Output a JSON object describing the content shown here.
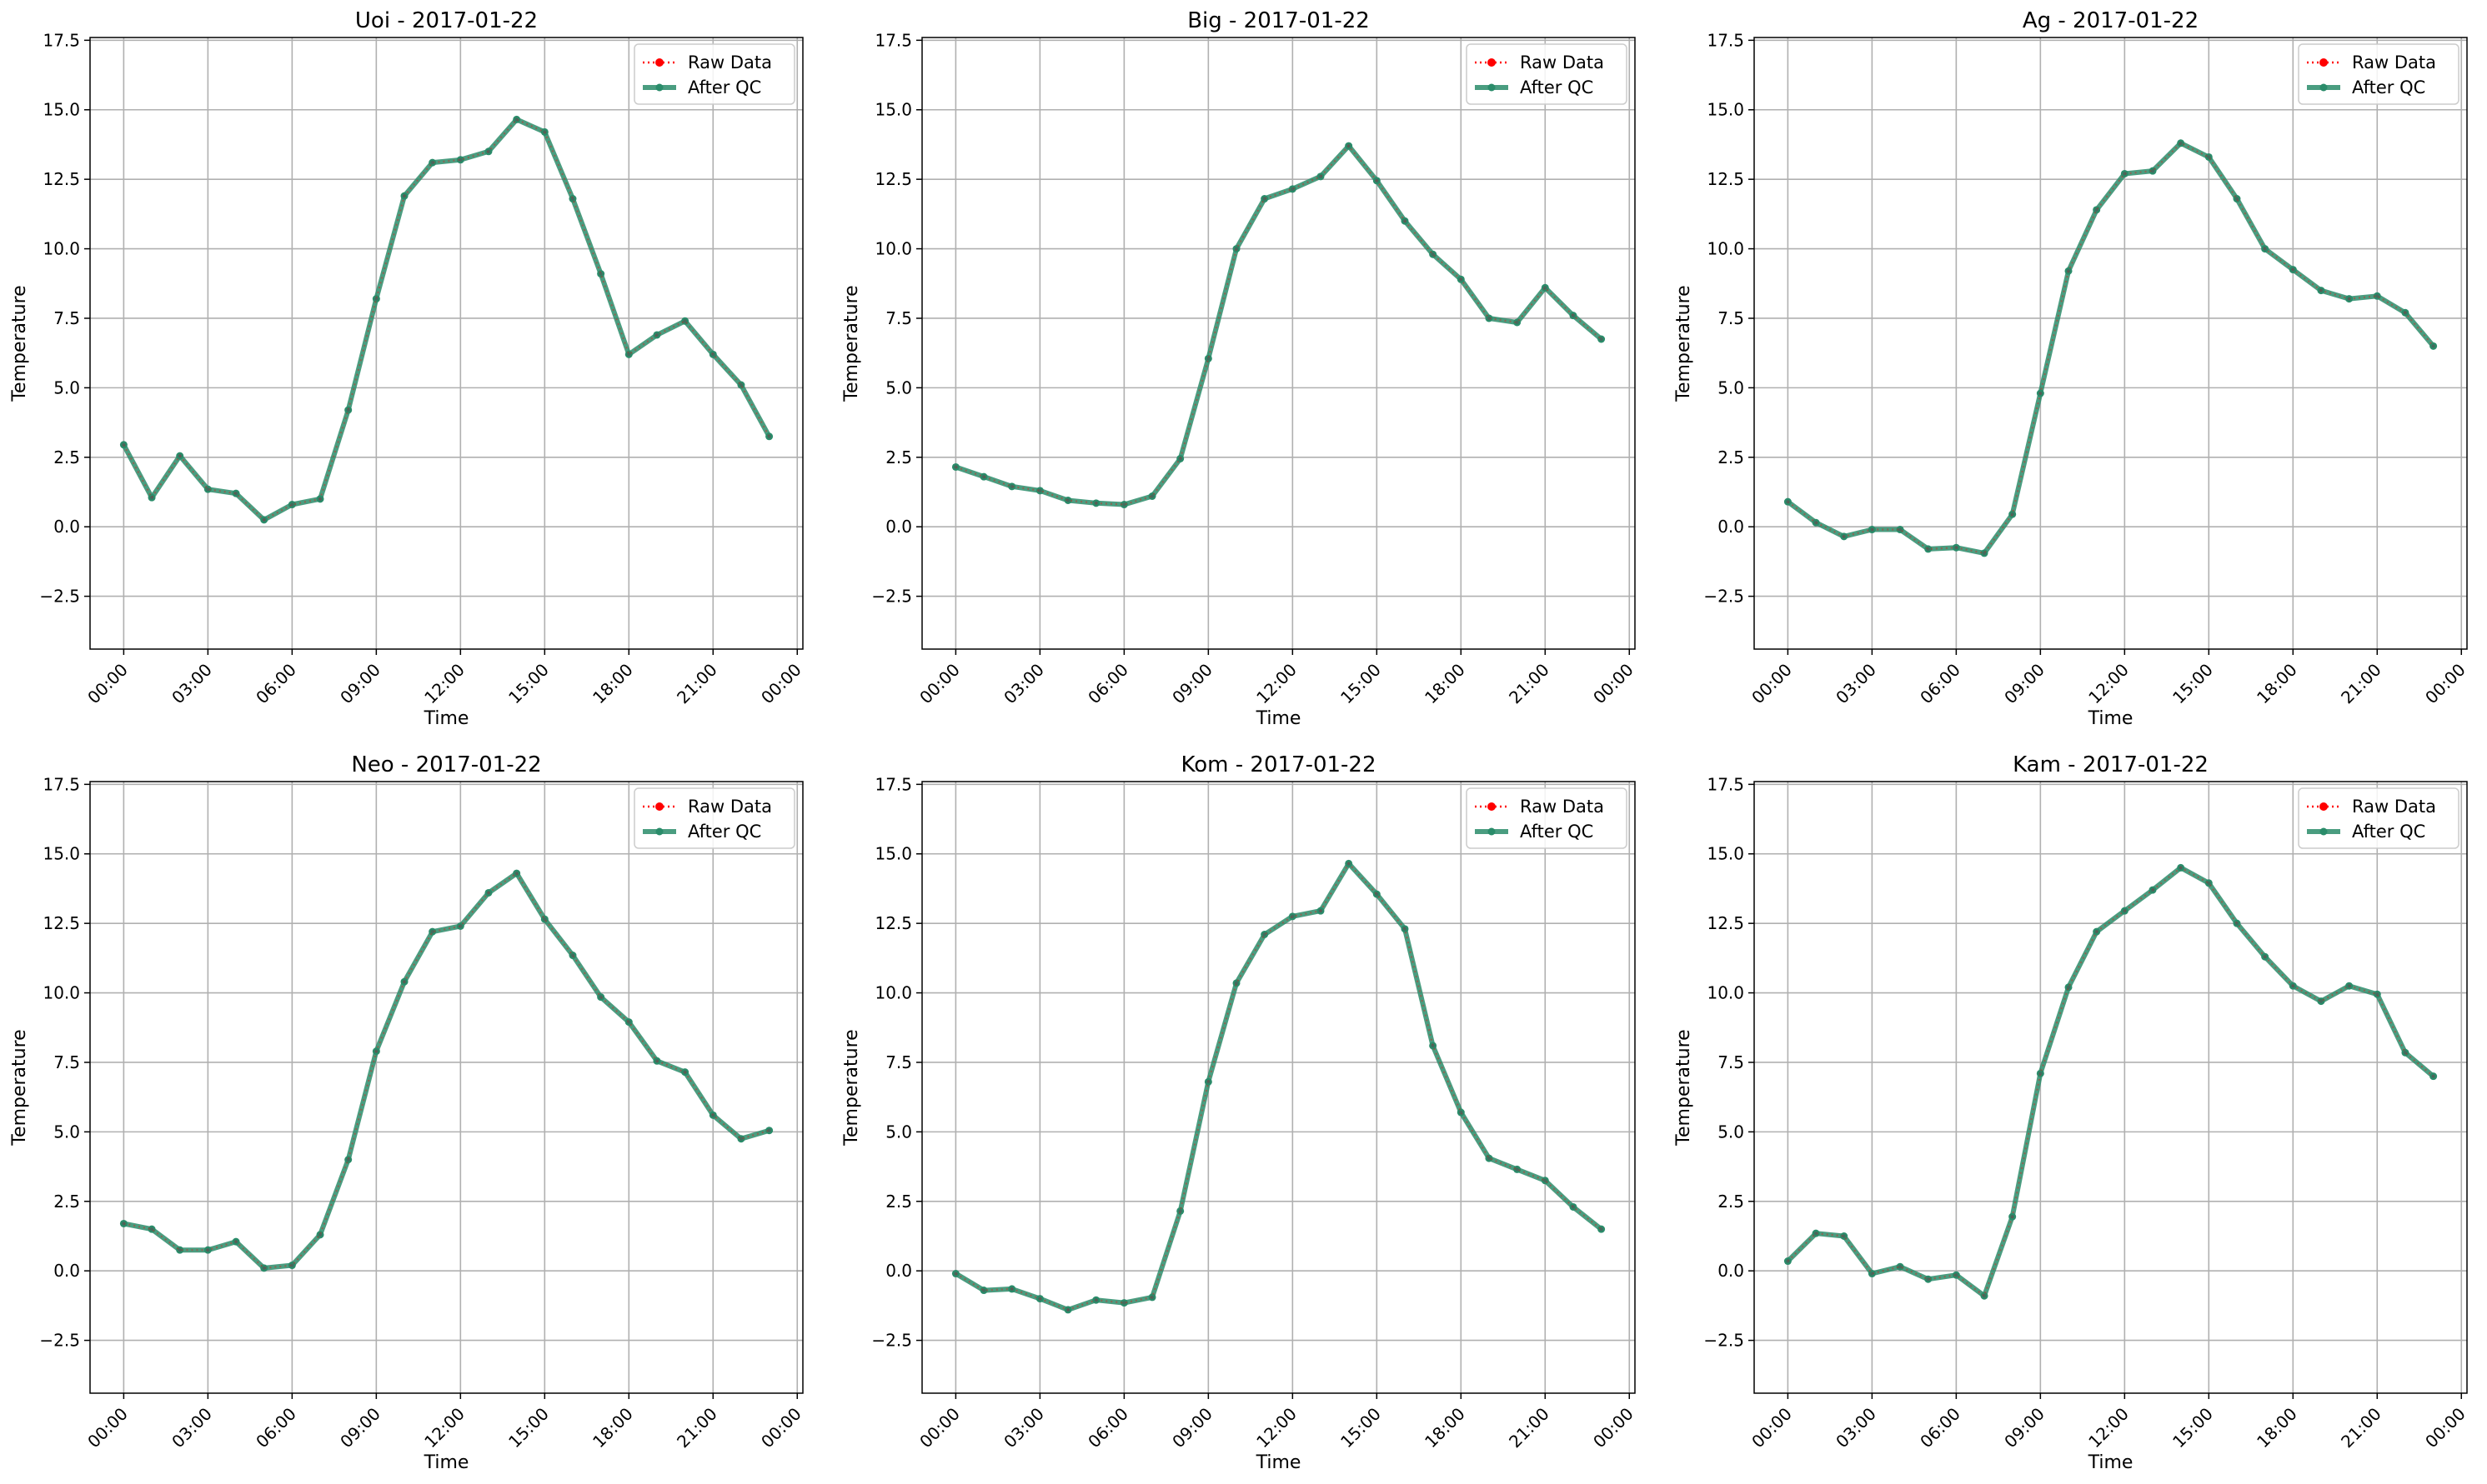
{
  "chart_data": [
    {
      "type": "line",
      "title": "Uoi - 2017-01-22",
      "xlabel": "Time",
      "ylabel": "Temperature",
      "x_ticks": [
        "00:00",
        "03:00",
        "06:00",
        "09:00",
        "12:00",
        "15:00",
        "18:00",
        "21:00",
        "00:00"
      ],
      "y_ticks": [
        "−2.5",
        "0.0",
        "2.5",
        "5.0",
        "7.5",
        "10.0",
        "12.5",
        "15.0",
        "17.5"
      ],
      "xlim": [
        "2017-01-21T22:48",
        "2017-01-23T00:12"
      ],
      "ylim": [
        -4.4,
        17.6
      ],
      "grid": true,
      "legend": "top-right",
      "x": [
        "00:00",
        "01:00",
        "02:00",
        "03:00",
        "04:00",
        "05:00",
        "06:00",
        "07:00",
        "08:00",
        "09:00",
        "10:00",
        "11:00",
        "12:00",
        "13:00",
        "14:00",
        "15:00",
        "16:00",
        "17:00",
        "18:00",
        "19:00",
        "20:00",
        "21:00",
        "22:00",
        "23:00"
      ],
      "series": [
        {
          "name": "Raw Data",
          "values": [
            2.95,
            1.05,
            2.55,
            1.35,
            1.2,
            0.25,
            0.8,
            1.0,
            4.2,
            8.2,
            11.9,
            13.1,
            13.2,
            13.5,
            14.65,
            14.2,
            11.8,
            9.1,
            6.2,
            6.9,
            7.4,
            6.2,
            5.1,
            3.25
          ]
        },
        {
          "name": "After QC",
          "values": [
            2.95,
            1.05,
            2.55,
            1.35,
            1.2,
            0.25,
            0.8,
            1.0,
            4.2,
            8.2,
            11.9,
            13.1,
            13.2,
            13.5,
            14.65,
            14.2,
            11.8,
            9.1,
            6.2,
            6.9,
            7.4,
            6.2,
            5.1,
            3.25
          ]
        }
      ]
    },
    {
      "type": "line",
      "title": "Big - 2017-01-22",
      "xlabel": "Time",
      "ylabel": "Temperature",
      "x_ticks": [
        "00:00",
        "03:00",
        "06:00",
        "09:00",
        "12:00",
        "15:00",
        "18:00",
        "21:00",
        "00:00"
      ],
      "y_ticks": [
        "−2.5",
        "0.0",
        "2.5",
        "5.0",
        "7.5",
        "10.0",
        "12.5",
        "15.0",
        "17.5"
      ],
      "xlim": [
        "2017-01-21T22:48",
        "2017-01-23T00:12"
      ],
      "ylim": [
        -4.4,
        17.6
      ],
      "grid": true,
      "legend": "top-right",
      "x": [
        "00:00",
        "01:00",
        "02:00",
        "03:00",
        "04:00",
        "05:00",
        "06:00",
        "07:00",
        "08:00",
        "09:00",
        "10:00",
        "11:00",
        "12:00",
        "13:00",
        "14:00",
        "15:00",
        "16:00",
        "17:00",
        "18:00",
        "19:00",
        "20:00",
        "21:00",
        "22:00",
        "23:00"
      ],
      "series": [
        {
          "name": "Raw Data",
          "values": [
            2.15,
            1.8,
            1.45,
            1.3,
            0.95,
            0.85,
            0.8,
            1.1,
            2.45,
            6.05,
            10.0,
            11.8,
            12.15,
            12.6,
            13.7,
            12.45,
            11.0,
            9.8,
            8.9,
            7.5,
            7.35,
            8.6,
            7.6,
            6.75
          ]
        },
        {
          "name": "After QC",
          "values": [
            2.15,
            1.8,
            1.45,
            1.3,
            0.95,
            0.85,
            0.8,
            1.1,
            2.45,
            6.05,
            10.0,
            11.8,
            12.15,
            12.6,
            13.7,
            12.45,
            11.0,
            9.8,
            8.9,
            7.5,
            7.35,
            8.6,
            7.6,
            6.75
          ]
        }
      ]
    },
    {
      "type": "line",
      "title": "Ag - 2017-01-22",
      "xlabel": "Time",
      "ylabel": "Temperature",
      "x_ticks": [
        "00:00",
        "03:00",
        "06:00",
        "09:00",
        "12:00",
        "15:00",
        "18:00",
        "21:00",
        "00:00"
      ],
      "y_ticks": [
        "−2.5",
        "0.0",
        "2.5",
        "5.0",
        "7.5",
        "10.0",
        "12.5",
        "15.0",
        "17.5"
      ],
      "xlim": [
        "2017-01-21T22:48",
        "2017-01-23T00:12"
      ],
      "ylim": [
        -4.4,
        17.6
      ],
      "grid": true,
      "legend": "top-right",
      "x": [
        "00:00",
        "01:00",
        "02:00",
        "03:00",
        "04:00",
        "05:00",
        "06:00",
        "07:00",
        "08:00",
        "09:00",
        "10:00",
        "11:00",
        "12:00",
        "13:00",
        "14:00",
        "15:00",
        "16:00",
        "17:00",
        "18:00",
        "19:00",
        "20:00",
        "21:00",
        "22:00",
        "23:00"
      ],
      "series": [
        {
          "name": "Raw Data",
          "values": [
            0.9,
            0.15,
            -0.35,
            -0.1,
            -0.1,
            -0.8,
            -0.75,
            -0.95,
            0.45,
            4.8,
            9.2,
            11.4,
            12.7,
            12.8,
            13.8,
            13.3,
            11.8,
            10.0,
            9.25,
            8.5,
            8.2,
            8.3,
            7.7,
            6.5
          ]
        },
        {
          "name": "After QC",
          "values": [
            0.9,
            0.15,
            -0.35,
            -0.1,
            -0.1,
            -0.8,
            -0.75,
            -0.95,
            0.45,
            4.8,
            9.2,
            11.4,
            12.7,
            12.8,
            13.8,
            13.3,
            11.8,
            10.0,
            9.25,
            8.5,
            8.2,
            8.3,
            7.7,
            6.5
          ]
        }
      ]
    },
    {
      "type": "line",
      "title": "Neo - 2017-01-22",
      "xlabel": "Time",
      "ylabel": "Temperature",
      "x_ticks": [
        "00:00",
        "03:00",
        "06:00",
        "09:00",
        "12:00",
        "15:00",
        "18:00",
        "21:00",
        "00:00"
      ],
      "y_ticks": [
        "−2.5",
        "0.0",
        "2.5",
        "5.0",
        "7.5",
        "10.0",
        "12.5",
        "15.0",
        "17.5"
      ],
      "xlim": [
        "2017-01-21T22:48",
        "2017-01-23T00:12"
      ],
      "ylim": [
        -4.4,
        17.6
      ],
      "grid": true,
      "legend": "top-right",
      "x": [
        "00:00",
        "01:00",
        "02:00",
        "03:00",
        "04:00",
        "05:00",
        "06:00",
        "07:00",
        "08:00",
        "09:00",
        "10:00",
        "11:00",
        "12:00",
        "13:00",
        "14:00",
        "15:00",
        "16:00",
        "17:00",
        "18:00",
        "19:00",
        "20:00",
        "21:00",
        "22:00",
        "23:00"
      ],
      "series": [
        {
          "name": "Raw Data",
          "values": [
            1.7,
            1.5,
            0.75,
            0.75,
            1.05,
            0.1,
            0.2,
            1.3,
            4.0,
            7.9,
            10.4,
            12.2,
            12.4,
            13.6,
            14.3,
            12.65,
            11.35,
            9.85,
            8.95,
            7.55,
            7.15,
            5.6,
            4.75,
            5.05
          ]
        },
        {
          "name": "After QC",
          "values": [
            1.7,
            1.5,
            0.75,
            0.75,
            1.05,
            0.1,
            0.2,
            1.3,
            4.0,
            7.9,
            10.4,
            12.2,
            12.4,
            13.6,
            14.3,
            12.65,
            11.35,
            9.85,
            8.95,
            7.55,
            7.15,
            5.6,
            4.75,
            5.05
          ]
        }
      ]
    },
    {
      "type": "line",
      "title": "Kom - 2017-01-22",
      "xlabel": "Time",
      "ylabel": "Temperature",
      "x_ticks": [
        "00:00",
        "03:00",
        "06:00",
        "09:00",
        "12:00",
        "15:00",
        "18:00",
        "21:00",
        "00:00"
      ],
      "y_ticks": [
        "−2.5",
        "0.0",
        "2.5",
        "5.0",
        "7.5",
        "10.0",
        "12.5",
        "15.0",
        "17.5"
      ],
      "xlim": [
        "2017-01-21T22:48",
        "2017-01-23T00:12"
      ],
      "ylim": [
        -4.4,
        17.6
      ],
      "grid": true,
      "legend": "top-right",
      "x": [
        "00:00",
        "01:00",
        "02:00",
        "03:00",
        "04:00",
        "05:00",
        "06:00",
        "07:00",
        "08:00",
        "09:00",
        "10:00",
        "11:00",
        "12:00",
        "13:00",
        "14:00",
        "15:00",
        "16:00",
        "17:00",
        "18:00",
        "19:00",
        "20:00",
        "21:00",
        "22:00",
        "23:00"
      ],
      "series": [
        {
          "name": "Raw Data",
          "values": [
            -0.1,
            -0.7,
            -0.65,
            -1.0,
            -1.4,
            -1.05,
            -1.15,
            -0.95,
            2.15,
            6.8,
            10.35,
            12.1,
            12.75,
            12.95,
            14.65,
            13.55,
            12.3,
            8.1,
            5.7,
            4.05,
            3.65,
            3.25,
            2.3,
            1.5
          ]
        },
        {
          "name": "After QC",
          "values": [
            -0.1,
            -0.7,
            -0.65,
            -1.0,
            -1.4,
            -1.05,
            -1.15,
            -0.95,
            2.15,
            6.8,
            10.35,
            12.1,
            12.75,
            12.95,
            14.65,
            13.55,
            12.3,
            8.1,
            5.7,
            4.05,
            3.65,
            3.25,
            2.3,
            1.5
          ]
        }
      ]
    },
    {
      "type": "line",
      "title": "Kam - 2017-01-22",
      "xlabel": "Time",
      "ylabel": "Temperature",
      "x_ticks": [
        "00:00",
        "03:00",
        "06:00",
        "09:00",
        "12:00",
        "15:00",
        "18:00",
        "21:00",
        "00:00"
      ],
      "y_ticks": [
        "−2.5",
        "0.0",
        "2.5",
        "5.0",
        "7.5",
        "10.0",
        "12.5",
        "15.0",
        "17.5"
      ],
      "xlim": [
        "2017-01-21T22:48",
        "2017-01-23T00:12"
      ],
      "ylim": [
        -4.4,
        17.6
      ],
      "grid": true,
      "legend": "top-right",
      "x": [
        "00:00",
        "01:00",
        "02:00",
        "03:00",
        "04:00",
        "05:00",
        "06:00",
        "07:00",
        "08:00",
        "09:00",
        "10:00",
        "11:00",
        "12:00",
        "13:00",
        "14:00",
        "15:00",
        "16:00",
        "17:00",
        "18:00",
        "19:00",
        "20:00",
        "21:00",
        "22:00",
        "23:00"
      ],
      "series": [
        {
          "name": "Raw Data",
          "values": [
            0.35,
            1.35,
            1.25,
            -0.1,
            0.15,
            -0.3,
            -0.15,
            -0.9,
            1.95,
            7.1,
            10.2,
            12.2,
            12.95,
            13.7,
            14.5,
            13.95,
            12.5,
            11.3,
            10.25,
            9.7,
            10.25,
            9.95,
            7.85,
            7.0
          ]
        },
        {
          "name": "After QC",
          "values": [
            0.35,
            1.35,
            1.25,
            -0.1,
            0.15,
            -0.3,
            -0.15,
            -0.9,
            1.95,
            7.1,
            10.2,
            12.2,
            12.95,
            13.7,
            14.5,
            13.95,
            12.5,
            11.3,
            10.25,
            9.7,
            10.25,
            9.95,
            7.85,
            7.0
          ]
        }
      ]
    }
  ],
  "colors": {
    "raw": "#ff0000",
    "qc": "#2a8c6a",
    "qc_marker": "#2a8c6a",
    "grid": "#b0b0b0",
    "axes": "#000000"
  }
}
